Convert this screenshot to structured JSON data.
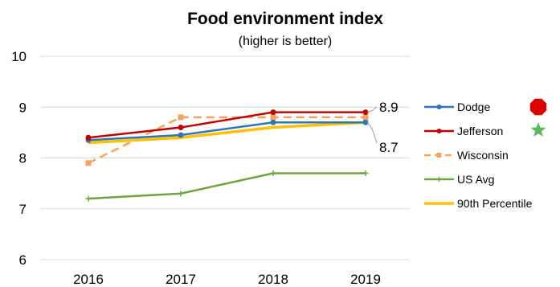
{
  "chart_data": {
    "type": "line",
    "title": "Food environment index",
    "subtitle": "(higher is better)",
    "categories": [
      "2016",
      "2017",
      "2018",
      "2019"
    ],
    "ylim": [
      6,
      10
    ],
    "yticks": [
      6,
      7,
      8,
      9,
      10
    ],
    "grid": true,
    "legend": "right",
    "series": [
      {
        "name": "Dodge",
        "values": [
          8.35,
          8.45,
          8.7,
          8.7
        ],
        "color": "#2e75b6",
        "style": "solid",
        "marker": "circle"
      },
      {
        "name": "Jefferson",
        "values": [
          8.4,
          8.6,
          8.9,
          8.9
        ],
        "color": "#c00000",
        "style": "solid",
        "marker": "circle"
      },
      {
        "name": "Wisconsin",
        "values": [
          7.9,
          8.8,
          8.8,
          8.8
        ],
        "color": "#f4a460",
        "style": "dashed",
        "marker": "square"
      },
      {
        "name": "US Avg",
        "values": [
          7.2,
          7.3,
          7.7,
          7.7
        ],
        "color": "#70a33f",
        "style": "solid",
        "marker": "plus"
      },
      {
        "name": "90th Percentile",
        "values": [
          8.3,
          8.4,
          8.6,
          8.7
        ],
        "color": "#ffc000",
        "style": "thick",
        "marker": "none"
      }
    ],
    "annotations": [
      {
        "text": "8.9",
        "series": "Jefferson",
        "category": "2019"
      },
      {
        "text": "8.7",
        "series": "Dodge",
        "category": "2019"
      }
    ],
    "legend_icons": {
      "Dodge": "red-octagon-icon",
      "Jefferson": "green-star-icon"
    },
    "icon_colors": {
      "octagon": "#dd0000",
      "star": "#5cb85c"
    }
  }
}
